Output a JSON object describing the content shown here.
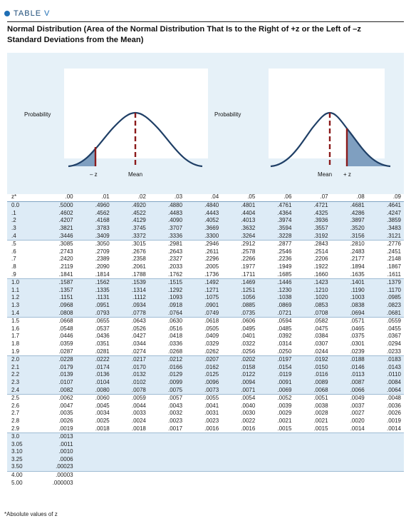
{
  "table_tag": {
    "label": "TABLE",
    "number": "V"
  },
  "title": "Normal Distribution (Area of the Normal Distribution That Is to the Right of +z or the Left of –z Standard Deviations from the Mean)",
  "figure": {
    "left": {
      "probability_label": "Probability",
      "z_label": "– z",
      "mean_label": "Mean"
    },
    "right": {
      "probability_label": "Probability",
      "mean_label": "Mean",
      "z_label": "+ z"
    },
    "colors": {
      "background": "#e6f1f8",
      "curve": "#1f3f66",
      "shade": "#7f9fc0",
      "mean_line": "#8b1a1a"
    }
  },
  "table": {
    "z_header": "z*",
    "columns": [
      ".00",
      ".01",
      ".02",
      ".03",
      ".04",
      ".05",
      ".06",
      ".07",
      ".08",
      ".09"
    ],
    "rows": [
      {
        "z": "0.0",
        "v": [
          ".5000",
          ".4960",
          ".4920",
          ".4880",
          ".4840",
          ".4801",
          ".4761",
          ".4721",
          ".4681",
          ".4641"
        ]
      },
      {
        "z": ".1",
        "v": [
          ".4602",
          ".4562",
          ".4522",
          ".4483",
          ".4443",
          ".4404",
          ".4364",
          ".4325",
          ".4286",
          ".4247"
        ]
      },
      {
        "z": ".2",
        "v": [
          ".4207",
          ".4168",
          ".4129",
          ".4090",
          ".4052",
          ".4013",
          ".3974",
          ".3936",
          ".3897",
          ".3859"
        ]
      },
      {
        "z": ".3",
        "v": [
          ".3821",
          ".3783",
          ".3745",
          ".3707",
          ".3669",
          ".3632",
          ".3594",
          ".3557",
          ".3520",
          ".3483"
        ]
      },
      {
        "z": ".4",
        "v": [
          ".3446",
          ".3409",
          ".3372",
          ".3336",
          ".3300",
          ".3264",
          ".3228",
          ".3192",
          ".3156",
          ".3121"
        ]
      },
      {
        "z": ".5",
        "v": [
          ".3085",
          ".3050",
          ".3015",
          ".2981",
          ".2946",
          ".2912",
          ".2877",
          ".2843",
          ".2810",
          ".2776"
        ]
      },
      {
        "z": ".6",
        "v": [
          ".2743",
          ".2709",
          ".2676",
          ".2643",
          ".2611",
          ".2578",
          ".2546",
          ".2514",
          ".2483",
          ".2451"
        ]
      },
      {
        "z": ".7",
        "v": [
          ".2420",
          ".2389",
          ".2358",
          ".2327",
          ".2296",
          ".2266",
          ".2236",
          ".2206",
          ".2177",
          ".2148"
        ]
      },
      {
        "z": ".8",
        "v": [
          ".2119",
          ".2090",
          ".2061",
          ".2033",
          ".2005",
          ".1977",
          ".1949",
          ".1922",
          ".1894",
          ".1867"
        ]
      },
      {
        "z": ".9",
        "v": [
          ".1841",
          ".1814",
          ".1788",
          ".1762",
          ".1736",
          ".1711",
          ".1685",
          ".1660",
          ".1635",
          ".1611"
        ]
      },
      {
        "z": "1.0",
        "v": [
          ".1587",
          ".1562",
          ".1539",
          ".1515",
          ".1492",
          ".1469",
          ".1446",
          ".1423",
          ".1401",
          ".1379"
        ]
      },
      {
        "z": "1.1",
        "v": [
          ".1357",
          ".1335",
          ".1314",
          ".1292",
          ".1271",
          ".1251",
          ".1230",
          ".1210",
          ".1190",
          ".1170"
        ]
      },
      {
        "z": "1.2",
        "v": [
          ".1151",
          ".1131",
          ".1112",
          ".1093",
          ".1075",
          ".1056",
          ".1038",
          ".1020",
          ".1003",
          ".0985"
        ]
      },
      {
        "z": "1.3",
        "v": [
          ".0968",
          ".0951",
          ".0934",
          ".0918",
          ".0901",
          ".0885",
          ".0869",
          ".0853",
          ".0838",
          ".0823"
        ]
      },
      {
        "z": "1.4",
        "v": [
          ".0808",
          ".0793",
          ".0778",
          ".0764",
          ".0749",
          ".0735",
          ".0721",
          ".0708",
          ".0694",
          ".0681"
        ]
      },
      {
        "z": "1.5",
        "v": [
          ".0668",
          ".0655",
          ".0643",
          ".0630",
          ".0618",
          ".0606",
          ".0594",
          ".0582",
          ".0571",
          ".0559"
        ]
      },
      {
        "z": "1.6",
        "v": [
          ".0548",
          ".0537",
          ".0526",
          ".0516",
          ".0505",
          ".0495",
          ".0485",
          ".0475",
          ".0465",
          ".0455"
        ]
      },
      {
        "z": "1.7",
        "v": [
          ".0446",
          ".0436",
          ".0427",
          ".0418",
          ".0409",
          ".0401",
          ".0392",
          ".0384",
          ".0375",
          ".0367"
        ]
      },
      {
        "z": "1.8",
        "v": [
          ".0359",
          ".0351",
          ".0344",
          ".0336",
          ".0329",
          ".0322",
          ".0314",
          ".0307",
          ".0301",
          ".0294"
        ]
      },
      {
        "z": "1.9",
        "v": [
          ".0287",
          ".0281",
          ".0274",
          ".0268",
          ".0262",
          ".0256",
          ".0250",
          ".0244",
          ".0239",
          ".0233"
        ]
      },
      {
        "z": "2.0",
        "v": [
          ".0228",
          ".0222",
          ".0217",
          ".0212",
          ".0207",
          ".0202",
          ".0197",
          ".0192",
          ".0188",
          ".0183"
        ]
      },
      {
        "z": "2.1",
        "v": [
          ".0179",
          ".0174",
          ".0170",
          ".0166",
          ".0162",
          ".0158",
          ".0154",
          ".0150",
          ".0146",
          ".0143"
        ]
      },
      {
        "z": "2.2",
        "v": [
          ".0139",
          ".0136",
          ".0132",
          ".0129",
          ".0125",
          ".0122",
          ".0119",
          ".0116",
          ".0113",
          ".0110"
        ]
      },
      {
        "z": "2.3",
        "v": [
          ".0107",
          ".0104",
          ".0102",
          ".0099",
          ".0096",
          ".0094",
          ".0091",
          ".0089",
          ".0087",
          ".0084"
        ]
      },
      {
        "z": "2.4",
        "v": [
          ".0082",
          ".0080",
          ".0078",
          ".0075",
          ".0073",
          ".0071",
          ".0069",
          ".0068",
          ".0066",
          ".0064"
        ]
      },
      {
        "z": "2.5",
        "v": [
          ".0062",
          ".0060",
          ".0059",
          ".0057",
          ".0055",
          ".0054",
          ".0052",
          ".0051",
          ".0049",
          ".0048"
        ]
      },
      {
        "z": "2.6",
        "v": [
          ".0047",
          ".0045",
          ".0044",
          ".0043",
          ".0041",
          ".0040",
          ".0039",
          ".0038",
          ".0037",
          ".0036"
        ]
      },
      {
        "z": "2.7",
        "v": [
          ".0035",
          ".0034",
          ".0033",
          ".0032",
          ".0031",
          ".0030",
          ".0029",
          ".0028",
          ".0027",
          ".0026"
        ]
      },
      {
        "z": "2.8",
        "v": [
          ".0026",
          ".0025",
          ".0024",
          ".0023",
          ".0023",
          ".0022",
          ".0021",
          ".0021",
          ".0020",
          ".0019"
        ]
      },
      {
        "z": "2.9",
        "v": [
          ".0019",
          ".0018",
          ".0018",
          ".0017",
          ".0016",
          ".0016",
          ".0015",
          ".0015",
          ".0014",
          ".0014"
        ]
      },
      {
        "z": "3.0",
        "v": [
          ".0013"
        ]
      },
      {
        "z": "3.05",
        "v": [
          ".0011"
        ]
      },
      {
        "z": "3.10",
        "v": [
          ".0010"
        ]
      },
      {
        "z": "3.25",
        "v": [
          ".0006"
        ]
      },
      {
        "z": "3.50",
        "v": [
          ".00023"
        ]
      },
      {
        "z": "4.00",
        "v": [
          ".00003"
        ]
      },
      {
        "z": "5.00",
        "v": [
          ".000003"
        ]
      }
    ]
  },
  "footnote": "*Absolute values of z"
}
